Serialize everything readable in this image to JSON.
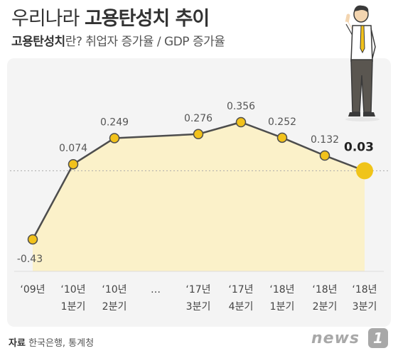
{
  "header": {
    "title_light": "우리나라",
    "title_bold": "고용탄성치 추이",
    "subtitle_bold": "고용탄성치",
    "subtitle_rest": "란? 취업자 증가율 / GDP 증가율"
  },
  "footer": {
    "source_label": "자료",
    "source_text": "한국은행, 통계청",
    "logo_word": "news",
    "logo_mark": "1"
  },
  "colors": {
    "line": "#4d4d4d",
    "marker": "#f2c21b",
    "marker_last": "#f0c419",
    "fill": "#fbf1c9",
    "text": "#444444",
    "reference": "#aaaaaa"
  },
  "chart_data": {
    "type": "line",
    "title": "우리나라 고용탄성치 추이",
    "subtitle": "고용탄성치란? 취업자 증가율 / GDP 증가율",
    "categories": [
      [
        "‘09년",
        ""
      ],
      [
        "‘10년",
        "1분기"
      ],
      [
        "‘10년",
        "2분기"
      ],
      [
        "…",
        ""
      ],
      [
        "‘17년",
        "3분기"
      ],
      [
        "‘17년",
        "4분기"
      ],
      [
        "‘18년",
        "1분기"
      ],
      [
        "‘18년",
        "2분기"
      ],
      [
        "‘18년",
        "3분기"
      ]
    ],
    "values": [
      -0.43,
      0.074,
      0.249,
      null,
      0.276,
      0.356,
      0.252,
      0.132,
      0.03
    ],
    "value_labels": [
      "-0.43",
      "0.074",
      "0.249",
      "",
      "0.276",
      "0.356",
      "0.252",
      "0.132",
      "0.03"
    ],
    "highlight_index": 8,
    "reference_line": 0.03,
    "ylim": [
      -0.52,
      0.42
    ],
    "grid": false,
    "legend": "none",
    "xlabel": "",
    "ylabel": ""
  }
}
